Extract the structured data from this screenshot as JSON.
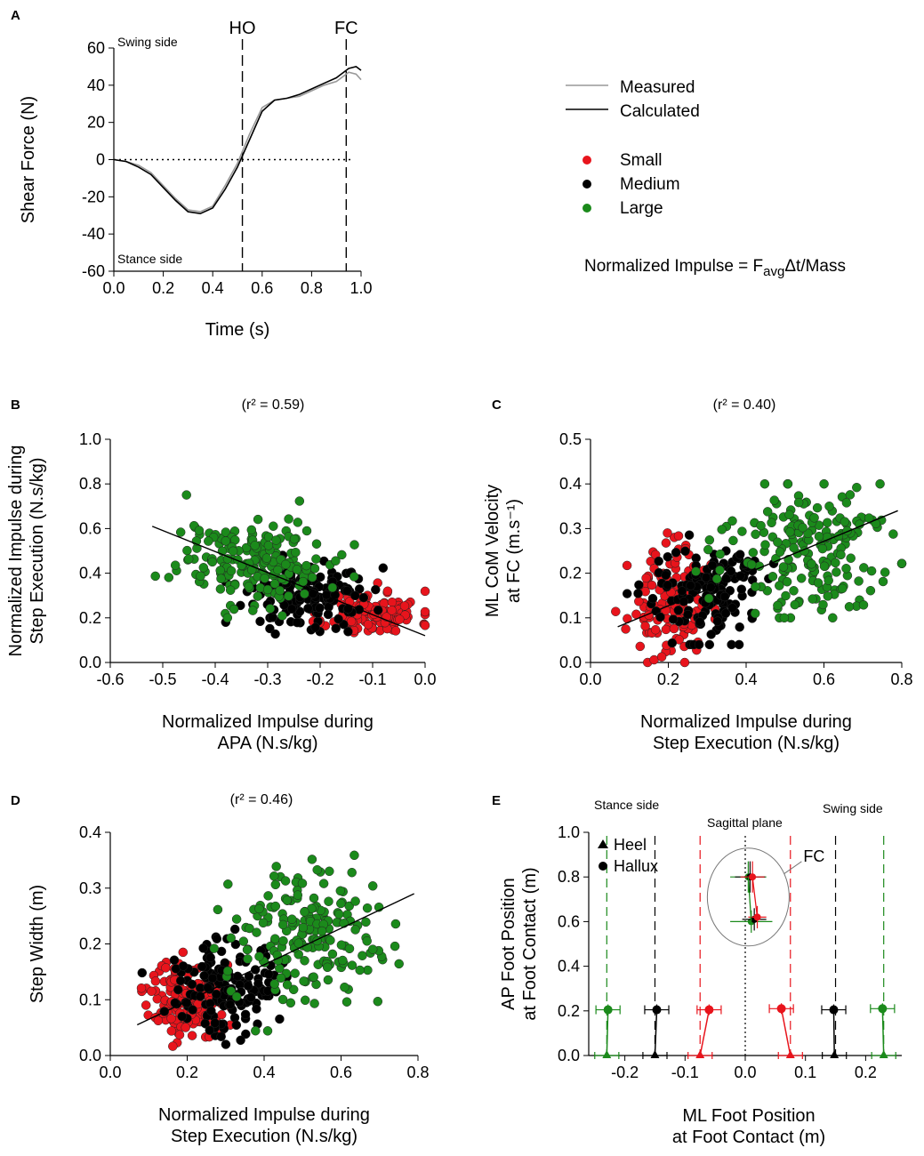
{
  "legend": {
    "lines": [
      {
        "label": "Measured",
        "color": "#999999"
      },
      {
        "label": "Calculated",
        "color": "#000000"
      }
    ],
    "groups": [
      {
        "label": "Small",
        "color": "#e8141c"
      },
      {
        "label": "Medium",
        "color": "#000000"
      },
      {
        "label": "Large",
        "color": "#1b8a1b"
      }
    ],
    "formula": {
      "prefix": "Normalized Impulse = F",
      "sub": "avg",
      "suffix": "Δt/Mass"
    }
  },
  "chart_data": [
    {
      "panel": "A",
      "type": "line",
      "xlabel": "Time (s)",
      "ylabel": "Shear Force (N)",
      "xlim": [
        0,
        1.0
      ],
      "ylim": [
        -60,
        60
      ],
      "xticks": [
        "0.0",
        "0.2",
        "0.4",
        "0.6",
        "0.8",
        "1.0"
      ],
      "xtick_values": [
        0,
        0.2,
        0.4,
        0.6,
        0.8,
        1.0
      ],
      "yticks": [
        "60",
        "40",
        "20",
        "0",
        "-20",
        "-40",
        "-60"
      ],
      "ytick_values": [
        60,
        40,
        20,
        0,
        -20,
        -40,
        -60
      ],
      "annotations": {
        "top": "Swing side",
        "bottom": "Stance side"
      },
      "events": [
        {
          "label": "HO",
          "x": 0.52
        },
        {
          "label": "FC",
          "x": 0.94
        }
      ],
      "series": [
        {
          "name": "Measured",
          "x": [
            0,
            0.05,
            0.1,
            0.15,
            0.2,
            0.25,
            0.3,
            0.35,
            0.4,
            0.45,
            0.5,
            0.55,
            0.6,
            0.65,
            0.7,
            0.75,
            0.8,
            0.85,
            0.9,
            0.95,
            0.98,
            1.0
          ],
          "y": [
            0,
            -1,
            -3,
            -7,
            -14,
            -21,
            -27,
            -28,
            -25,
            -14,
            -2,
            14,
            28,
            32,
            33,
            34,
            37,
            40,
            42,
            47,
            46,
            43
          ]
        },
        {
          "name": "Calculated",
          "x": [
            0,
            0.05,
            0.1,
            0.15,
            0.2,
            0.25,
            0.3,
            0.35,
            0.4,
            0.45,
            0.5,
            0.55,
            0.6,
            0.65,
            0.7,
            0.75,
            0.8,
            0.85,
            0.9,
            0.95,
            0.98,
            1.0
          ],
          "y": [
            0,
            -1,
            -4,
            -8,
            -15,
            -22,
            -28,
            -29,
            -26,
            -16,
            -4,
            11,
            26,
            32,
            33,
            35,
            38,
            41,
            44,
            49,
            50,
            48
          ]
        }
      ]
    },
    {
      "panel": "B",
      "type": "scatter",
      "title": "(r² = 0.59)",
      "xlabel": [
        "Normalized Impulse during",
        "APA (N.s/kg)"
      ],
      "ylabel": [
        "Normalized Impulse during",
        "Step Execution (N.s/kg)"
      ],
      "xlim": [
        -0.6,
        0.0
      ],
      "ylim": [
        0,
        1.0
      ],
      "xticks": [
        "-0.6",
        "-0.5",
        "-0.4",
        "-0.3",
        "-0.2",
        "-0.1",
        "0.0"
      ],
      "xtick_values": [
        -0.6,
        -0.5,
        -0.4,
        -0.3,
        -0.2,
        -0.1,
        0.0
      ],
      "yticks": [
        "0.0",
        "0.2",
        "0.4",
        "0.6",
        "0.8",
        "1.0"
      ],
      "ytick_values": [
        0,
        0.2,
        0.4,
        0.6,
        0.8,
        1.0
      ],
      "fit": {
        "x": [
          -0.52,
          0.0
        ],
        "y": [
          0.61,
          0.12
        ]
      },
      "clusters": [
        {
          "group": "Small",
          "n": 130,
          "cx": -0.1,
          "sx": 0.045,
          "cy": 0.22,
          "sy": 0.05,
          "xr": [
            -0.22,
            0.0
          ],
          "yr": [
            0.08,
            0.42
          ]
        },
        {
          "group": "Medium",
          "n": 150,
          "cx": -0.22,
          "sx": 0.06,
          "cy": 0.3,
          "sy": 0.07,
          "xr": [
            -0.38,
            0.0
          ],
          "yr": [
            0.1,
            0.6
          ]
        },
        {
          "group": "Large",
          "n": 190,
          "cx": -0.33,
          "sx": 0.07,
          "cy": 0.46,
          "sy": 0.1,
          "xr": [
            -0.52,
            -0.1
          ],
          "yr": [
            0.2,
            0.8
          ]
        }
      ]
    },
    {
      "panel": "C",
      "type": "scatter",
      "title": "(r² = 0.40)",
      "xlabel": [
        "Normalized Impulse during",
        "Step Execution (N.s/kg)"
      ],
      "ylabel": [
        "ML CoM Velocity",
        "at FC (m.s⁻¹)"
      ],
      "xlim": [
        0,
        0.8
      ],
      "ylim": [
        0,
        0.5
      ],
      "xticks": [
        "0.0",
        "0.2",
        "0.4",
        "0.6",
        "0.8"
      ],
      "xtick_values": [
        0,
        0.2,
        0.4,
        0.6,
        0.8
      ],
      "yticks": [
        "0.0",
        "0.1",
        "0.2",
        "0.3",
        "0.4",
        "0.5"
      ],
      "ytick_values": [
        0,
        0.1,
        0.2,
        0.3,
        0.4,
        0.5
      ],
      "fit": {
        "x": [
          0.07,
          0.79
        ],
        "y": [
          0.08,
          0.34
        ]
      },
      "clusters": [
        {
          "group": "Small",
          "n": 140,
          "cx": 0.2,
          "sx": 0.05,
          "cy": 0.13,
          "sy": 0.06,
          "xr": [
            0.06,
            0.32
          ],
          "yr": [
            0.0,
            0.29
          ]
        },
        {
          "group": "Medium",
          "n": 150,
          "cx": 0.3,
          "sx": 0.07,
          "cy": 0.16,
          "sy": 0.06,
          "xr": [
            0.08,
            0.48
          ],
          "yr": [
            0.04,
            0.32
          ]
        },
        {
          "group": "Large",
          "n": 190,
          "cx": 0.55,
          "sx": 0.11,
          "cy": 0.25,
          "sy": 0.08,
          "xr": [
            0.25,
            0.8
          ],
          "yr": [
            0.1,
            0.4
          ]
        }
      ]
    },
    {
      "panel": "D",
      "type": "scatter",
      "title": "(r² = 0.46)",
      "xlabel": [
        "Normalized Impulse during",
        "Step Execution (N.s/kg)"
      ],
      "ylabel": [
        "Step Width (m)"
      ],
      "xlim": [
        0,
        0.8
      ],
      "ylim": [
        0,
        0.4
      ],
      "xticks": [
        "0.0",
        "0.2",
        "0.4",
        "0.6",
        "0.8"
      ],
      "xtick_values": [
        0,
        0.2,
        0.4,
        0.6,
        0.8
      ],
      "yticks": [
        "0.0",
        "0.1",
        "0.2",
        "0.3",
        "0.4"
      ],
      "ytick_values": [
        0,
        0.1,
        0.2,
        0.3,
        0.4
      ],
      "fit": {
        "x": [
          0.07,
          0.79
        ],
        "y": [
          0.055,
          0.29
        ]
      },
      "clusters": [
        {
          "group": "Small",
          "n": 160,
          "cx": 0.2,
          "sx": 0.05,
          "cy": 0.1,
          "sy": 0.035,
          "xr": [
            0.06,
            0.32
          ],
          "yr": [
            0.0,
            0.2
          ]
        },
        {
          "group": "Medium",
          "n": 150,
          "cx": 0.3,
          "sx": 0.07,
          "cy": 0.13,
          "sy": 0.045,
          "xr": [
            0.08,
            0.48
          ],
          "yr": [
            0.02,
            0.28
          ]
        },
        {
          "group": "Large",
          "n": 190,
          "cx": 0.52,
          "sx": 0.1,
          "cy": 0.22,
          "sy": 0.06,
          "xr": [
            0.27,
            0.8
          ],
          "yr": [
            0.02,
            0.38
          ]
        }
      ]
    },
    {
      "panel": "E",
      "type": "errorbar",
      "xlabel": [
        "ML Foot Position",
        "at Foot Contact (m)"
      ],
      "ylabel": [
        "AP Foot Position",
        "at Foot Contact (m)"
      ],
      "xlim": [
        -0.26,
        0.26
      ],
      "ylim": [
        0,
        1.0
      ],
      "xticks": [
        "-0.2",
        "-0.1",
        "0.0",
        "0.1",
        "0.2"
      ],
      "xtick_values": [
        -0.2,
        -0.1,
        0.0,
        0.1,
        0.2
      ],
      "yticks": [
        "0.0",
        "0.2",
        "0.4",
        "0.6",
        "0.8",
        "1.0"
      ],
      "ytick_values": [
        0,
        0.2,
        0.4,
        0.6,
        0.8,
        1.0
      ],
      "labels": {
        "stance": "Stance side",
        "swing": "Swing side",
        "sagittal": "Sagittal plane",
        "fc": "FC"
      },
      "markers": [
        {
          "symbol": "triangle",
          "label": "Heel"
        },
        {
          "symbol": "circle",
          "label": "Hallux"
        }
      ],
      "dashed_lines": [
        {
          "group": "Large",
          "x": -0.23
        },
        {
          "group": "Medium",
          "x": -0.15
        },
        {
          "group": "Small",
          "x": -0.075
        },
        {
          "group": "Small",
          "x": 0.075
        },
        {
          "group": "Medium",
          "x": 0.15
        },
        {
          "group": "Large",
          "x": 0.23
        }
      ],
      "feet": [
        {
          "group": "Large",
          "heel_x": -0.23,
          "hallux_x": -0.228,
          "hallux_y": 0.205,
          "err_x": 0.02
        },
        {
          "group": "Medium",
          "heel_x": -0.15,
          "hallux_x": -0.147,
          "hallux_y": 0.205,
          "err_x": 0.02
        },
        {
          "group": "Small",
          "heel_x": -0.075,
          "hallux_x": -0.06,
          "hallux_y": 0.205,
          "err_x": 0.02
        },
        {
          "group": "Small",
          "heel_x": 0.075,
          "hallux_x": 0.06,
          "hallux_y": 0.21,
          "err_x": 0.02
        },
        {
          "group": "Medium",
          "heel_x": 0.148,
          "hallux_x": 0.147,
          "hallux_y": 0.205,
          "err_x": 0.02
        },
        {
          "group": "Large",
          "heel_x": 0.23,
          "hallux_x": 0.228,
          "hallux_y": 0.21,
          "err_x": 0.02
        }
      ],
      "fc_points": [
        {
          "group": "Large",
          "x": 0.005,
          "y": 0.8,
          "err_x": 0.03,
          "err_y": 0.07
        },
        {
          "group": "Medium",
          "x": 0.008,
          "y": 0.8,
          "err_x": 0.025,
          "err_y": 0.07
        },
        {
          "group": "Small",
          "x": 0.012,
          "y": 0.8,
          "err_x": 0.02,
          "err_y": 0.07
        },
        {
          "group": "Large",
          "x": 0.01,
          "y": 0.6,
          "err_x": 0.035,
          "err_y": 0.05
        },
        {
          "group": "Medium",
          "x": 0.015,
          "y": 0.61,
          "err_x": 0.02,
          "err_y": 0.05
        },
        {
          "group": "Small",
          "x": 0.02,
          "y": 0.62,
          "err_x": 0.015,
          "err_y": 0.05
        }
      ]
    }
  ]
}
